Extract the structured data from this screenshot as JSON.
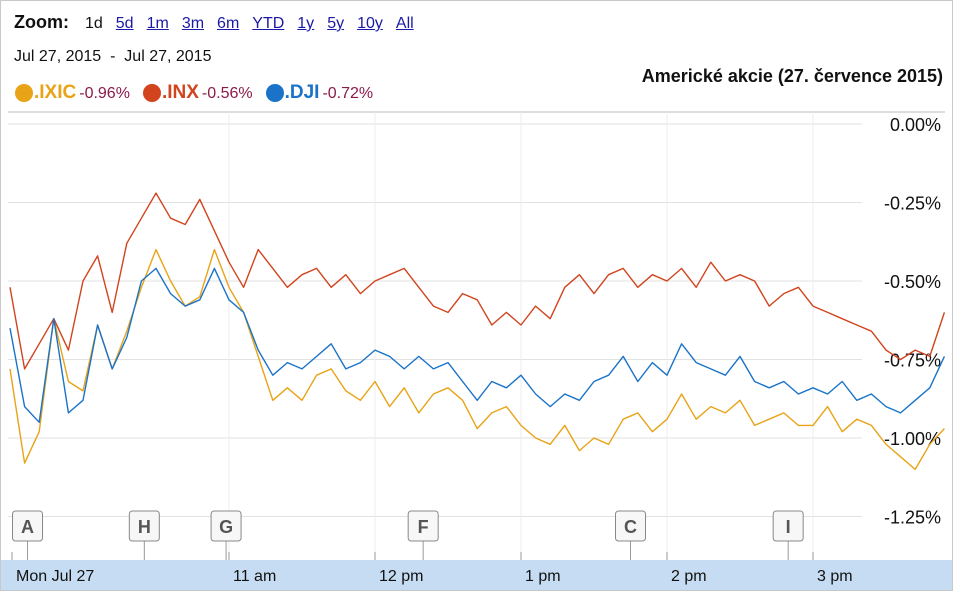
{
  "zoom": {
    "label": "Zoom:",
    "options": [
      "1d",
      "5d",
      "1m",
      "3m",
      "6m",
      "YTD",
      "1y",
      "5y",
      "10y",
      "All"
    ],
    "active": "1d"
  },
  "date_range": "Jul 27, 2015  -  Jul 27, 2015",
  "title": "Americké akcie (27. července 2015)",
  "legend": [
    {
      "name": ".IXIC",
      "change": "-0.96%",
      "color": "#e8a317"
    },
    {
      "name": ".INX",
      "change": "-0.56%",
      "color": "#d1441e"
    },
    {
      "name": ".DJI",
      "change": "-0.72%",
      "color": "#1a73c9"
    }
  ],
  "chart_data": {
    "type": "line",
    "title": "Americké akcie (27. července 2015)",
    "xlabel": "",
    "ylabel": "",
    "x_ticks": [
      "Mon Jul 27",
      "11 am",
      "12 pm",
      "1 pm",
      "2 pm",
      "3 pm"
    ],
    "y_ticks": [
      "0.00%",
      "-0.25%",
      "-0.50%",
      "-0.75%",
      "-1.00%",
      "-1.25%"
    ],
    "ylim": [
      -1.3,
      0.0
    ],
    "grid": true,
    "x_unit": "hour of trading day",
    "x": [
      9.5,
      9.6,
      9.7,
      9.8,
      9.9,
      10.0,
      10.1,
      10.2,
      10.3,
      10.4,
      10.5,
      10.6,
      10.7,
      10.8,
      10.9,
      11.0,
      11.1,
      11.2,
      11.3,
      11.4,
      11.5,
      11.6,
      11.7,
      11.8,
      11.9,
      12.0,
      12.1,
      12.2,
      12.3,
      12.4,
      12.5,
      12.6,
      12.7,
      12.8,
      12.9,
      13.0,
      13.1,
      13.2,
      13.3,
      13.4,
      13.5,
      13.6,
      13.7,
      13.8,
      13.9,
      14.0,
      14.1,
      14.2,
      14.3,
      14.4,
      14.5,
      14.6,
      14.7,
      14.8,
      14.9,
      15.0,
      15.1,
      15.2,
      15.3,
      15.4,
      15.5,
      15.6,
      15.7,
      15.8,
      15.9
    ],
    "series": [
      {
        "name": ".IXIC",
        "color": "#e8a317",
        "values": [
          -0.78,
          -1.08,
          -0.98,
          -0.62,
          -0.82,
          -0.85,
          -0.64,
          -0.78,
          -0.66,
          -0.52,
          -0.4,
          -0.5,
          -0.58,
          -0.55,
          -0.4,
          -0.52,
          -0.6,
          -0.74,
          -0.88,
          -0.84,
          -0.88,
          -0.8,
          -0.78,
          -0.85,
          -0.88,
          -0.82,
          -0.9,
          -0.84,
          -0.92,
          -0.86,
          -0.84,
          -0.88,
          -0.97,
          -0.92,
          -0.9,
          -0.96,
          -1.0,
          -1.02,
          -0.96,
          -1.04,
          -1.0,
          -1.02,
          -0.94,
          -0.92,
          -0.98,
          -0.94,
          -0.86,
          -0.94,
          -0.9,
          -0.92,
          -0.88,
          -0.96,
          -0.94,
          -0.92,
          -0.96,
          -0.96,
          -0.9,
          -0.98,
          -0.94,
          -0.96,
          -1.02,
          -1.06,
          -1.1,
          -1.02,
          -0.97
        ]
      },
      {
        "name": ".INX",
        "color": "#d1441e",
        "values": [
          -0.52,
          -0.78,
          -0.7,
          -0.62,
          -0.72,
          -0.5,
          -0.42,
          -0.6,
          -0.38,
          -0.3,
          -0.22,
          -0.3,
          -0.32,
          -0.24,
          -0.34,
          -0.44,
          -0.52,
          -0.4,
          -0.46,
          -0.52,
          -0.48,
          -0.46,
          -0.52,
          -0.48,
          -0.54,
          -0.5,
          -0.48,
          -0.46,
          -0.52,
          -0.58,
          -0.6,
          -0.54,
          -0.56,
          -0.64,
          -0.6,
          -0.64,
          -0.58,
          -0.62,
          -0.52,
          -0.48,
          -0.54,
          -0.48,
          -0.46,
          -0.52,
          -0.48,
          -0.5,
          -0.46,
          -0.52,
          -0.44,
          -0.5,
          -0.48,
          -0.5,
          -0.58,
          -0.54,
          -0.52,
          -0.58,
          -0.6,
          -0.62,
          -0.64,
          -0.66,
          -0.72,
          -0.75,
          -0.72,
          -0.74,
          -0.6
        ]
      },
      {
        "name": ".DJI",
        "color": "#1a73c9",
        "values": [
          -0.65,
          -0.9,
          -0.95,
          -0.62,
          -0.92,
          -0.88,
          -0.64,
          -0.78,
          -0.68,
          -0.5,
          -0.46,
          -0.54,
          -0.58,
          -0.56,
          -0.46,
          -0.56,
          -0.6,
          -0.72,
          -0.8,
          -0.76,
          -0.78,
          -0.74,
          -0.7,
          -0.78,
          -0.76,
          -0.72,
          -0.74,
          -0.78,
          -0.74,
          -0.78,
          -0.76,
          -0.82,
          -0.88,
          -0.82,
          -0.84,
          -0.8,
          -0.86,
          -0.9,
          -0.86,
          -0.88,
          -0.82,
          -0.8,
          -0.74,
          -0.82,
          -0.76,
          -0.8,
          -0.7,
          -0.76,
          -0.78,
          -0.8,
          -0.74,
          -0.82,
          -0.84,
          -0.82,
          -0.86,
          -0.84,
          -0.86,
          -0.82,
          -0.88,
          -0.86,
          -0.9,
          -0.92,
          -0.88,
          -0.84,
          -0.74
        ]
      }
    ],
    "annotations": [
      {
        "label": "A",
        "x": 9.62
      },
      {
        "label": "H",
        "x": 10.42
      },
      {
        "label": "G",
        "x": 10.98
      },
      {
        "label": "F",
        "x": 12.33
      },
      {
        "label": "C",
        "x": 13.75
      },
      {
        "label": "I",
        "x": 14.83
      }
    ]
  }
}
